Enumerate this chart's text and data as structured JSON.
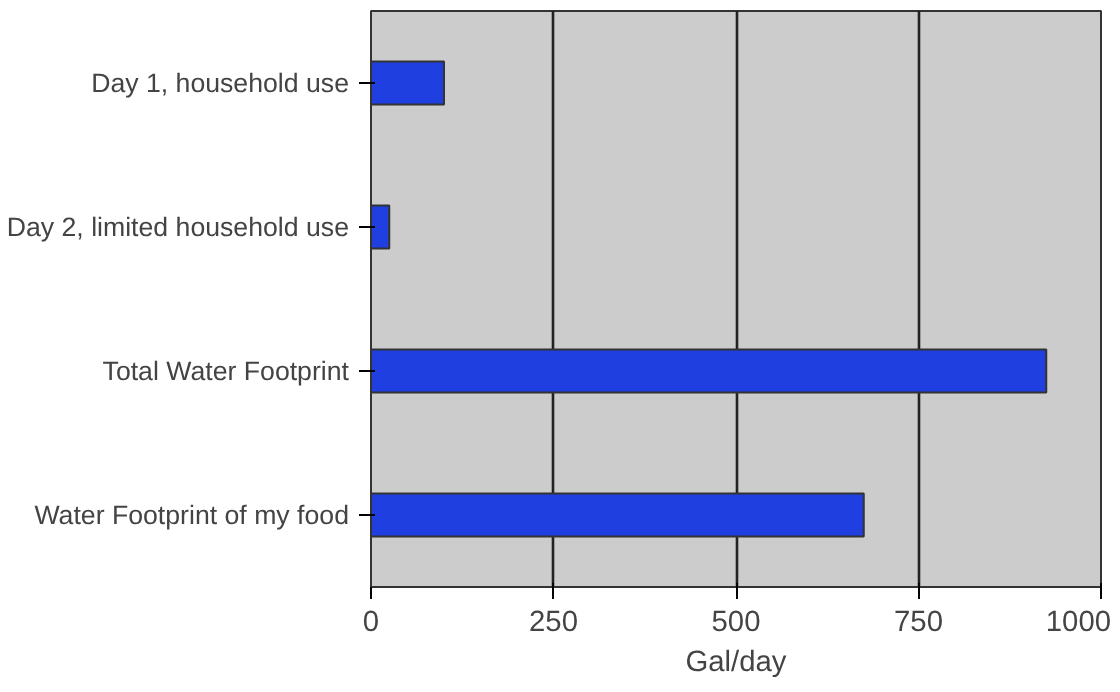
{
  "chart_data": {
    "type": "bar",
    "orientation": "horizontal",
    "xlabel": "Gal/day",
    "categories": [
      "Day 1, household use",
      "Day 2, limited household use",
      "Total Water Footprint",
      "Water Footprint of my food"
    ],
    "values": [
      100,
      25,
      925,
      675
    ],
    "color": "#1f3fe0",
    "xlim": [
      0,
      1000
    ],
    "xticks": [
      0,
      250,
      500,
      750,
      1000
    ],
    "grid": "x"
  }
}
